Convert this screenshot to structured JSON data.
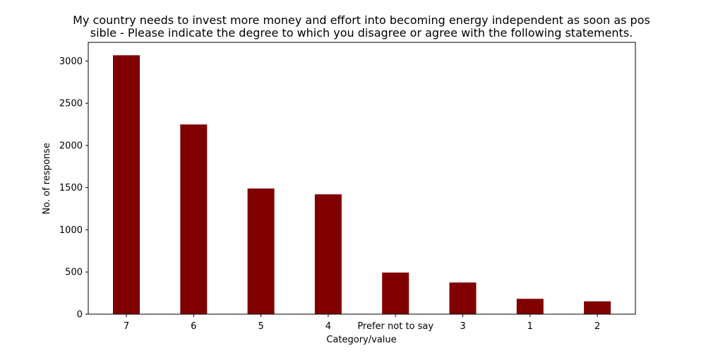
{
  "chart_data": {
    "type": "bar",
    "title_lines": [
      "My country needs to invest more money and effort into becoming energy independent as soon as pos",
      "sible - Please indicate the degree to which you disagree or agree with the following statements."
    ],
    "xlabel": "Category/value",
    "ylabel": "No. of response",
    "categories": [
      "7",
      "6",
      "5",
      "4",
      "Prefer not to say",
      "3",
      "1",
      "2"
    ],
    "values": [
      3068,
      2248,
      1489,
      1420,
      493,
      375,
      182,
      152
    ],
    "yticks": [
      0,
      500,
      1000,
      1500,
      2000,
      2500,
      3000
    ],
    "ylim": [
      0,
      3221
    ],
    "bar_color": "#800000",
    "grid": false,
    "legend": "none"
  }
}
